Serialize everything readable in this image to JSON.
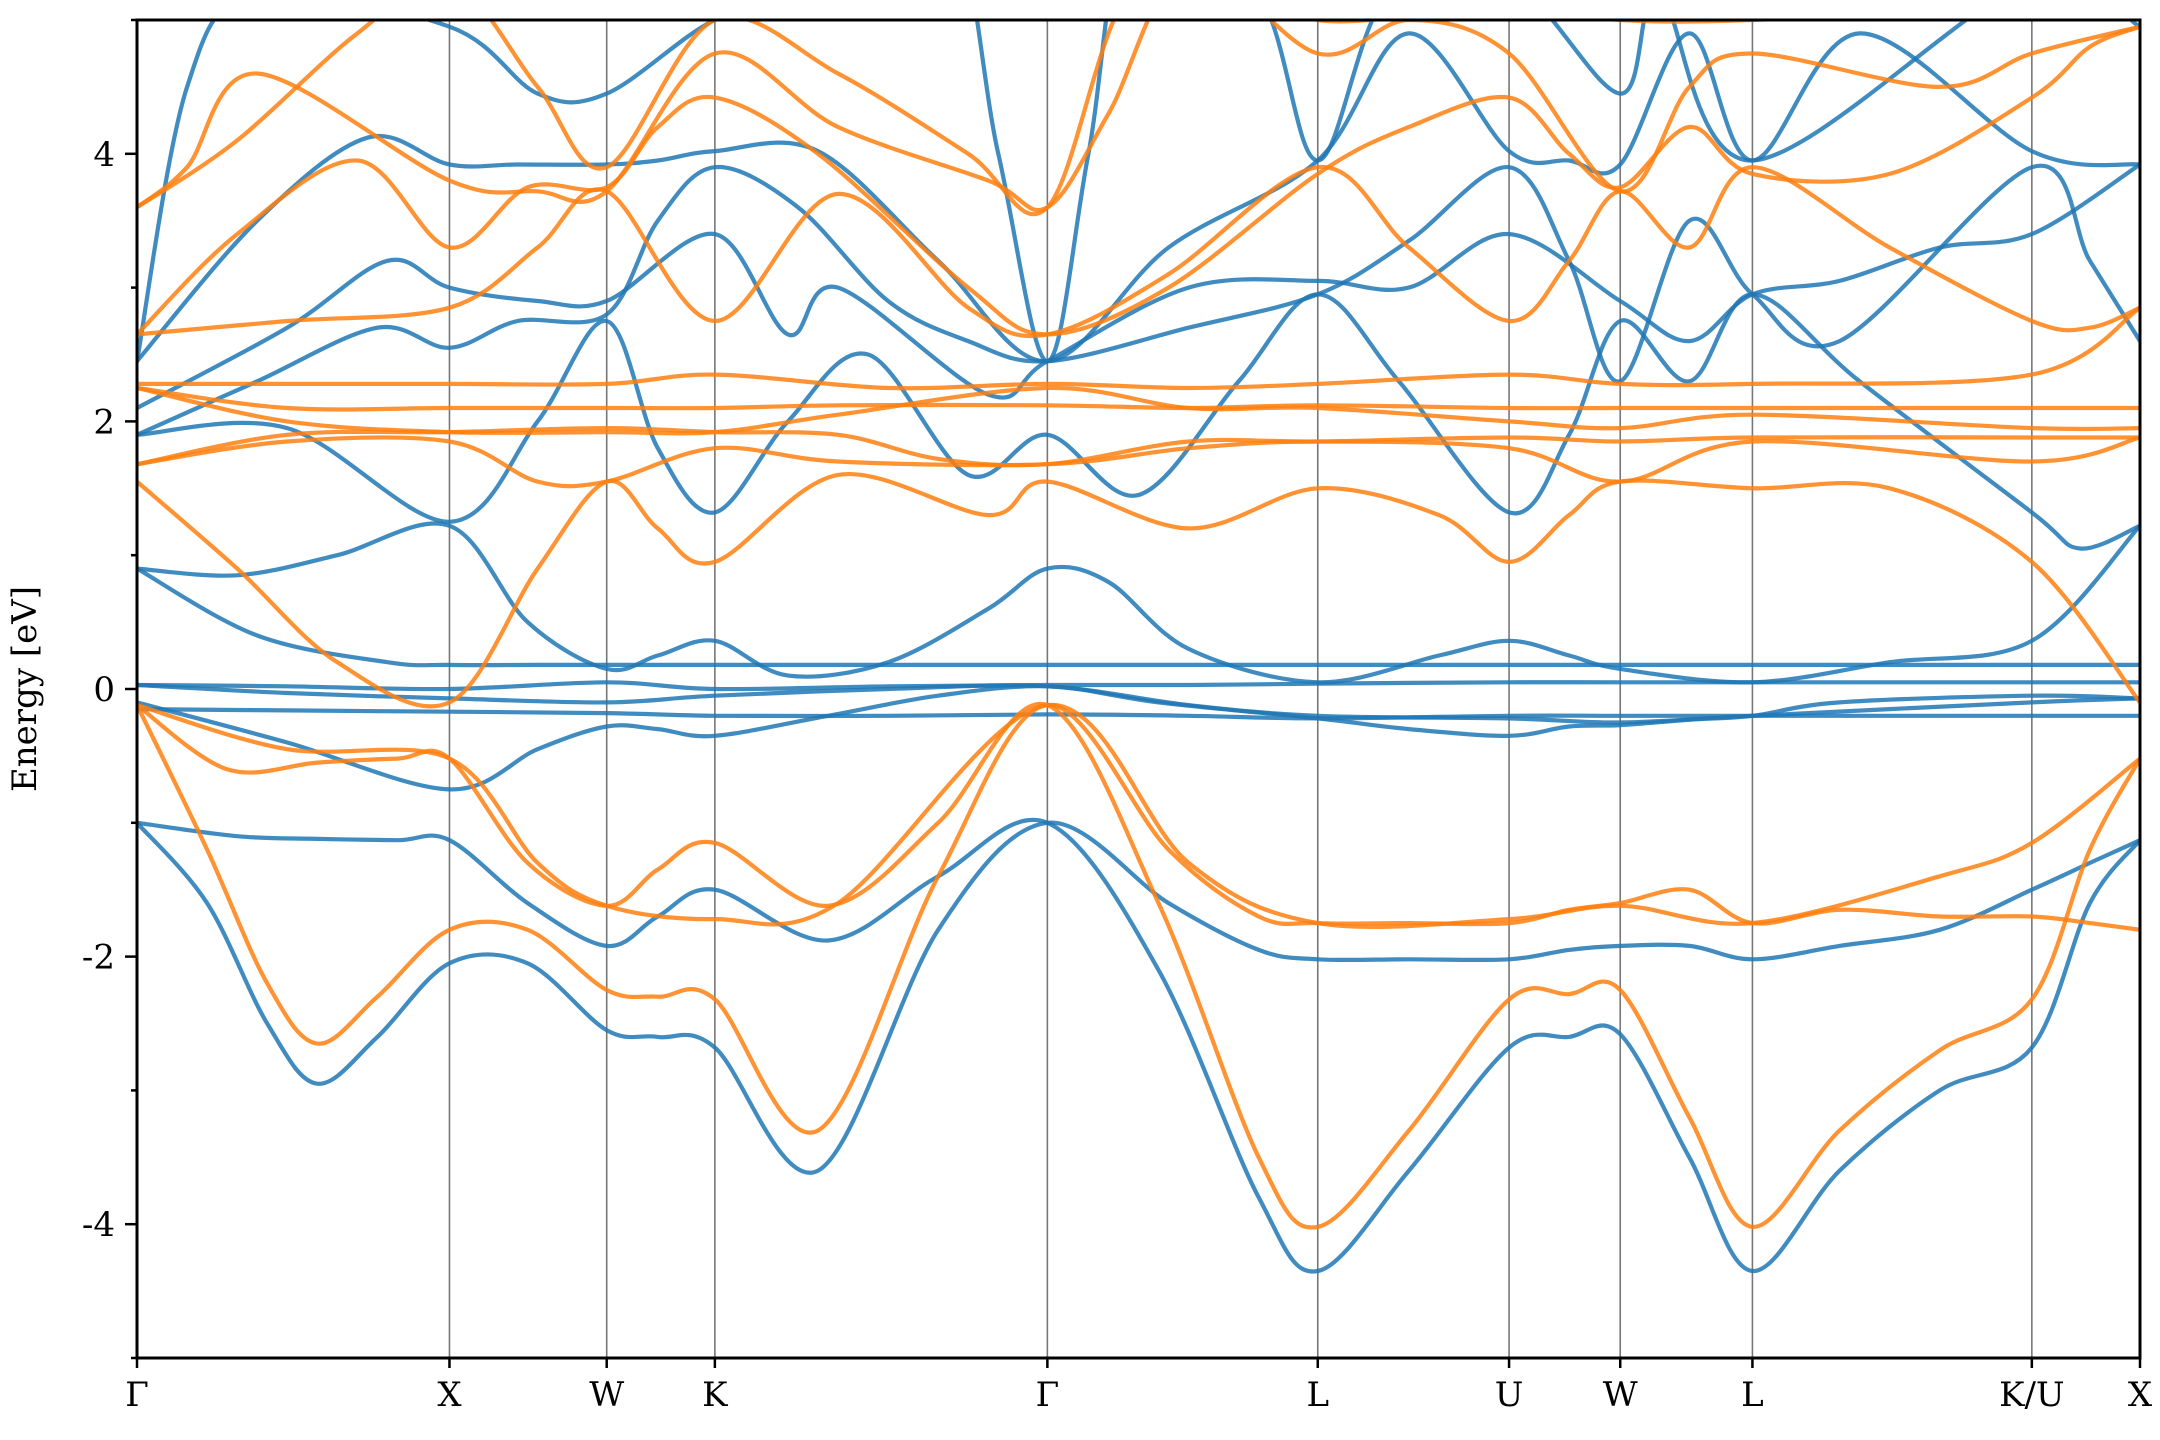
{
  "chart_data": {
    "type": "line",
    "xlabel": "",
    "ylabel": "Energy [eV]",
    "ylim": [
      -5,
      5
    ],
    "xlim": [
      0,
      20
    ],
    "yticks": [
      -4,
      -2,
      0,
      2,
      4
    ],
    "yminor_ticks": [
      -5,
      -3,
      -1,
      1,
      3,
      5
    ],
    "kpoints": [
      {
        "label": "Γ",
        "x": 0
      },
      {
        "label": "X",
        "x": 3.12
      },
      {
        "label": "W",
        "x": 4.69
      },
      {
        "label": "K",
        "x": 5.77
      },
      {
        "label": "Γ",
        "x": 9.09
      },
      {
        "label": "L",
        "x": 11.79
      },
      {
        "label": "U",
        "x": 13.7
      },
      {
        "label": "W",
        "x": 14.81
      },
      {
        "label": "L",
        "x": 16.13
      },
      {
        "label": "K/U",
        "x": 18.92
      },
      {
        "label": "X",
        "x": 20.0
      }
    ],
    "colors": {
      "spin_a": "#1f77b4",
      "spin_b": "#ff7f0e"
    },
    "series": [
      {
        "color": "spin_a",
        "x": [
          0,
          1,
          1.8,
          2.6,
          3.12,
          3.9,
          4.69,
          5.2,
          5.77,
          6.9,
          8.0,
          9.09,
          10.2,
          11.2,
          11.79,
          12.7,
          13.7,
          14.3,
          14.81,
          15.5,
          16.13,
          17.0,
          18.0,
          18.92,
          19.5,
          20.0
        ],
        "y": [
          -1.0,
          -1.1,
          -1.12,
          -1.13,
          -1.13,
          -1.6,
          -1.92,
          -1.7,
          -1.5,
          -1.88,
          -1.4,
          -1.0,
          -2.1,
          -3.8,
          -4.35,
          -3.6,
          -2.68,
          -2.6,
          -2.58,
          -3.5,
          -4.35,
          -3.6,
          -3.0,
          -2.68,
          -1.6,
          -1.13
        ]
      },
      {
        "color": "spin_a",
        "x": [
          0,
          0.7,
          1.3,
          1.8,
          2.4,
          3.12,
          3.9,
          4.69,
          5.2,
          5.77,
          6.8,
          8.0,
          9.09,
          10.3,
          11.2,
          11.79,
          12.7,
          13.7,
          14.3,
          14.81,
          15.5,
          16.13,
          17.0,
          18.0,
          18.92,
          19.5,
          20.0
        ],
        "y": [
          -1.0,
          -1.6,
          -2.5,
          -2.95,
          -2.6,
          -2.05,
          -2.05,
          -2.55,
          -2.6,
          -2.68,
          -3.6,
          -1.8,
          -1.0,
          -1.6,
          -1.95,
          -2.02,
          -2.02,
          -2.02,
          -1.95,
          -1.92,
          -1.92,
          -2.02,
          -1.92,
          -1.8,
          -1.5,
          -1.3,
          -1.13
        ]
      },
      {
        "color": "spin_a",
        "x": [
          0,
          1.5,
          3.12,
          4.0,
          4.69,
          5.2,
          5.77,
          6.9,
          8.0,
          9.09,
          10.2,
          11.79,
          12.7,
          13.7,
          14.3,
          14.81,
          15.5,
          16.13,
          17.0,
          18.92,
          20.0
        ],
        "y": [
          -0.1,
          -0.4,
          -0.75,
          -0.45,
          -0.28,
          -0.3,
          -0.35,
          -0.2,
          -0.05,
          0.02,
          -0.1,
          -0.22,
          -0.3,
          -0.35,
          -0.28,
          -0.27,
          -0.23,
          -0.2,
          -0.1,
          -0.05,
          -0.07
        ]
      },
      {
        "color": "spin_a",
        "x": [
          0,
          1.5,
          3.12,
          4.69,
          5.77,
          7.5,
          9.09,
          10.5,
          11.79,
          13.7,
          14.81,
          16.13,
          18.92,
          20.0
        ],
        "y": [
          0.03,
          -0.03,
          -0.07,
          -0.1,
          -0.05,
          0.0,
          0.02,
          -0.12,
          -0.2,
          -0.22,
          -0.25,
          -0.2,
          -0.1,
          -0.07
        ]
      },
      {
        "color": "spin_a",
        "x": [
          0,
          1.5,
          3.12,
          4.69,
          5.77,
          7.5,
          9.09,
          10.5,
          11.79,
          13.7,
          14.81,
          16.13,
          18.92,
          20.0
        ],
        "y": [
          -0.15,
          -0.16,
          -0.17,
          -0.18,
          -0.2,
          -0.2,
          -0.19,
          -0.2,
          -0.22,
          -0.2,
          -0.2,
          -0.2,
          -0.2,
          -0.2
        ]
      },
      {
        "color": "spin_a",
        "x": [
          0,
          1.5,
          3.12,
          4.69,
          5.77,
          7.5,
          9.09,
          10.5,
          11.79,
          13.7,
          14.81,
          16.13,
          18.92,
          20.0
        ],
        "y": [
          0.03,
          0.02,
          0.0,
          0.05,
          0.0,
          0.02,
          0.03,
          0.03,
          0.04,
          0.05,
          0.05,
          0.05,
          0.05,
          0.05
        ]
      },
      {
        "color": "spin_a",
        "x": [
          0,
          1.2,
          2.5,
          3.12,
          4.0,
          4.69,
          5.77,
          7.0,
          9.09,
          11.79,
          13.7,
          14.81,
          16.13,
          18.92,
          20.0
        ],
        "y": [
          0.9,
          0.4,
          0.2,
          0.18,
          0.18,
          0.18,
          0.18,
          0.18,
          0.18,
          0.18,
          0.18,
          0.18,
          0.18,
          0.18,
          0.18
        ]
      },
      {
        "color": "spin_a",
        "x": [
          0,
          1.0,
          2.0,
          3.12,
          3.9,
          4.69,
          5.2,
          5.77,
          6.5,
          7.5,
          8.5,
          9.09,
          9.7,
          10.5,
          11.79,
          13.0,
          13.7,
          14.3,
          14.81,
          16.13,
          17.5,
          18.92,
          20.0
        ],
        "y": [
          0.9,
          0.85,
          1.0,
          1.22,
          0.5,
          0.15,
          0.25,
          0.36,
          0.1,
          0.2,
          0.6,
          0.9,
          0.8,
          0.3,
          0.05,
          0.25,
          0.36,
          0.25,
          0.15,
          0.05,
          0.2,
          0.36,
          1.22
        ]
      },
      {
        "color": "spin_a",
        "x": [
          0,
          1.5,
          3.12,
          4.0,
          4.69,
          5.2,
          5.77,
          6.5,
          7.3,
          8.3,
          9.09,
          10.0,
          11.0,
          11.79,
          12.6,
          13.7,
          14.3,
          14.81,
          15.5,
          16.13,
          17.2,
          18.92,
          19.4,
          20.0
        ],
        "y": [
          1.9,
          1.95,
          1.25,
          2.0,
          2.75,
          1.8,
          1.32,
          2.0,
          2.5,
          1.6,
          1.9,
          1.45,
          2.3,
          2.95,
          2.3,
          1.32,
          1.9,
          2.75,
          2.3,
          2.95,
          2.3,
          1.32,
          1.05,
          1.22
        ]
      },
      {
        "color": "spin_a",
        "x": [
          0,
          1.5,
          2.5,
          3.12,
          4.0,
          4.69,
          5.77,
          6.5,
          7.0,
          8.5,
          9.09,
          10.5,
          11.79,
          12.7,
          13.7,
          14.81,
          15.5,
          16.13,
          17.0,
          18.0,
          18.92,
          20.0
        ],
        "y": [
          2.1,
          2.7,
          3.2,
          3.0,
          2.9,
          2.9,
          3.4,
          2.65,
          3.0,
          2.2,
          2.45,
          3.0,
          3.05,
          3.0,
          3.4,
          2.9,
          2.6,
          2.95,
          3.05,
          3.3,
          3.4,
          3.92
        ]
      },
      {
        "color": "spin_a",
        "x": [
          0,
          1.2,
          2.3,
          3.12,
          3.8,
          4.69,
          5.2,
          5.77,
          6.8,
          8.0,
          9.09,
          10.3,
          11.79,
          12.7,
          13.7,
          14.3,
          14.81,
          15.5,
          16.13,
          17.2,
          18.92,
          20.0
        ],
        "y": [
          2.45,
          3.5,
          4.12,
          3.92,
          3.92,
          3.92,
          3.95,
          4.02,
          4.02,
          3.2,
          2.45,
          3.3,
          3.95,
          4.9,
          4.02,
          3.95,
          3.92,
          4.9,
          3.95,
          4.9,
          4.02,
          3.92
        ]
      },
      {
        "color": "spin_a",
        "x": [
          0,
          1.2,
          2.4,
          3.12,
          3.8,
          4.69,
          5.2,
          5.77,
          6.6,
          7.5,
          8.3,
          9.09,
          10.5,
          11.79,
          12.7,
          13.7,
          14.3,
          14.81,
          15.5,
          16.13,
          17.0,
          18.92,
          19.5,
          20.0
        ],
        "y": [
          1.9,
          2.3,
          2.7,
          2.55,
          2.75,
          2.8,
          3.5,
          3.9,
          3.6,
          2.9,
          2.6,
          2.45,
          2.7,
          2.95,
          3.35,
          3.9,
          3.2,
          2.3,
          3.5,
          2.95,
          2.6,
          3.9,
          3.2,
          2.6
        ]
      },
      {
        "color": "spin_a",
        "x": [
          0,
          0.5,
          1.2,
          3.12,
          4.0,
          4.69,
          5.77,
          6.6,
          8.0,
          8.6,
          9.09,
          9.5,
          10.0,
          11.2,
          11.79,
          12.5,
          13.7,
          14.81,
          15.2,
          16.13,
          18.92,
          20.0
        ],
        "y": [
          2.45,
          4.5,
          5.2,
          4.95,
          4.45,
          4.45,
          5.0,
          5.1,
          6.0,
          4.0,
          2.45,
          4.0,
          6.0,
          5.2,
          3.95,
          5.2,
          5.3,
          4.45,
          5.2,
          3.95,
          5.3,
          4.95
        ]
      },
      {
        "color": "spin_b",
        "x": [
          0,
          0.9,
          1.8,
          2.6,
          3.12,
          3.9,
          4.69,
          5.2,
          5.77,
          6.9,
          8.0,
          9.09,
          10.2,
          11.2,
          11.79,
          12.7,
          13.7,
          14.3,
          14.81,
          15.5,
          16.13,
          17.0,
          18.0,
          18.92,
          19.5,
          20.0
        ],
        "y": [
          -0.12,
          -0.6,
          -0.55,
          -0.52,
          -0.52,
          -1.3,
          -1.62,
          -1.35,
          -1.15,
          -1.62,
          -1.0,
          -0.12,
          -1.6,
          -3.5,
          -4.02,
          -3.3,
          -2.32,
          -2.28,
          -2.25,
          -3.2,
          -4.02,
          -3.3,
          -2.7,
          -2.32,
          -1.2,
          -0.52
        ]
      },
      {
        "color": "spin_b",
        "x": [
          0,
          0.7,
          1.3,
          1.8,
          2.4,
          3.12,
          3.9,
          4.69,
          5.2,
          5.77,
          6.8,
          8.0,
          9.09,
          10.3,
          11.2,
          11.79,
          12.7,
          13.7,
          14.3,
          14.81,
          15.5,
          16.13,
          17.0,
          18.0,
          18.92,
          19.5,
          20.0
        ],
        "y": [
          -0.12,
          -1.2,
          -2.2,
          -2.65,
          -2.3,
          -1.8,
          -1.8,
          -2.25,
          -2.3,
          -2.32,
          -3.3,
          -1.4,
          -0.12,
          -1.2,
          -1.7,
          -1.75,
          -1.75,
          -1.75,
          -1.65,
          -1.6,
          -1.5,
          -1.75,
          -1.65,
          -1.7,
          -1.7,
          -1.75,
          -1.8
        ]
      },
      {
        "color": "spin_b",
        "x": [
          0,
          1.5,
          3.12,
          4.0,
          4.69,
          5.77,
          7.0,
          9.09,
          10.5,
          11.79,
          13.7,
          14.81,
          16.13,
          18.0,
          18.92,
          20.0
        ],
        "y": [
          -0.12,
          -0.45,
          -0.52,
          -1.3,
          -1.62,
          -1.72,
          -1.6,
          -0.12,
          -1.3,
          -1.75,
          -1.72,
          -1.62,
          -1.75,
          -1.4,
          -1.15,
          -0.52
        ]
      },
      {
        "color": "spin_b",
        "x": [
          0,
          1.0,
          2.0,
          3.12,
          4.0,
          4.69,
          5.2,
          5.77,
          7.0,
          8.5,
          9.09,
          10.5,
          11.79,
          13.0,
          13.7,
          14.3,
          14.81,
          16.13,
          17.5,
          18.92,
          20.0
        ],
        "y": [
          1.55,
          0.9,
          0.2,
          -0.1,
          0.9,
          1.55,
          1.2,
          0.95,
          1.6,
          1.3,
          1.55,
          1.2,
          1.5,
          1.3,
          0.95,
          1.3,
          1.55,
          1.5,
          1.5,
          0.95,
          -0.1
        ]
      },
      {
        "color": "spin_b",
        "x": [
          0,
          1.5,
          3.12,
          4.0,
          4.69,
          5.77,
          7.0,
          9.09,
          10.5,
          11.79,
          13.7,
          14.81,
          16.13,
          18.92,
          20.0
        ],
        "y": [
          1.68,
          1.85,
          1.85,
          1.55,
          1.55,
          1.8,
          1.7,
          1.68,
          1.8,
          1.85,
          1.8,
          1.55,
          1.85,
          1.7,
          1.88
        ]
      },
      {
        "color": "spin_b",
        "x": [
          0,
          1.5,
          3.12,
          4.69,
          5.77,
          7.0,
          8.0,
          9.09,
          10.5,
          11.79,
          13.7,
          14.81,
          16.13,
          18.92,
          20.0
        ],
        "y": [
          1.68,
          1.9,
          1.92,
          1.95,
          1.92,
          1.9,
          1.72,
          1.68,
          1.85,
          1.85,
          1.88,
          1.85,
          1.88,
          1.88,
          1.88
        ]
      },
      {
        "color": "spin_b",
        "x": [
          0,
          1.5,
          3.12,
          4.69,
          5.77,
          7.0,
          9.09,
          10.5,
          11.79,
          13.7,
          14.81,
          16.13,
          18.92,
          20.0
        ],
        "y": [
          2.25,
          2.0,
          1.92,
          1.92,
          1.92,
          2.05,
          2.25,
          2.1,
          2.1,
          2.0,
          1.95,
          2.05,
          1.95,
          1.95
        ]
      },
      {
        "color": "spin_b",
        "x": [
          0,
          1.5,
          3.12,
          4.69,
          5.77,
          7.0,
          9.09,
          10.5,
          11.79,
          13.7,
          14.81,
          16.13,
          18.92,
          20.0
        ],
        "y": [
          2.25,
          2.1,
          2.1,
          2.1,
          2.1,
          2.12,
          2.12,
          2.1,
          2.12,
          2.1,
          2.1,
          2.1,
          2.1,
          2.1
        ]
      },
      {
        "color": "spin_b",
        "x": [
          0,
          1.5,
          3.12,
          4.69,
          5.77,
          7.5,
          9.09,
          10.5,
          11.79,
          13.7,
          14.81,
          16.13,
          18.92,
          20.0
        ],
        "y": [
          2.28,
          2.28,
          2.28,
          2.28,
          2.35,
          2.25,
          2.28,
          2.25,
          2.28,
          2.35,
          2.28,
          2.28,
          2.35,
          2.85
        ]
      },
      {
        "color": "spin_b",
        "x": [
          0,
          1.5,
          3.12,
          4.0,
          4.69,
          5.77,
          7.0,
          8.3,
          9.09,
          10.3,
          11.79,
          12.7,
          13.7,
          14.3,
          14.81,
          15.5,
          16.13,
          17.5,
          18.92,
          19.5,
          20.0
        ],
        "y": [
          2.65,
          2.75,
          2.85,
          3.3,
          3.72,
          2.75,
          3.7,
          2.85,
          2.65,
          3.1,
          3.9,
          3.3,
          2.75,
          3.2,
          3.72,
          3.3,
          3.9,
          3.3,
          2.75,
          2.7,
          2.85
        ]
      },
      {
        "color": "spin_b",
        "x": [
          0,
          1.0,
          2.2,
          3.12,
          3.9,
          4.69,
          5.2,
          5.77,
          6.8,
          8.3,
          9.09,
          10.3,
          11.79,
          12.7,
          13.7,
          14.3,
          14.81,
          15.5,
          16.13,
          17.5,
          18.92,
          19.5,
          20.0
        ],
        "y": [
          2.65,
          3.4,
          3.95,
          3.3,
          3.75,
          3.75,
          4.2,
          4.42,
          4.0,
          3.0,
          2.65,
          3.0,
          3.85,
          4.2,
          4.42,
          4.0,
          3.75,
          4.2,
          3.85,
          3.85,
          4.42,
          4.8,
          4.95
        ]
      },
      {
        "color": "spin_b",
        "x": [
          0,
          0.5,
          1.2,
          3.12,
          4.0,
          4.69,
          5.77,
          7.0,
          8.5,
          9.09,
          9.7,
          10.5,
          11.79,
          12.7,
          13.7,
          14.81,
          15.5,
          16.13,
          18.0,
          18.92,
          20.0
        ],
        "y": [
          3.6,
          3.9,
          4.6,
          3.8,
          3.72,
          3.72,
          4.75,
          4.2,
          3.8,
          3.6,
          4.3,
          5.4,
          4.75,
          5.0,
          4.75,
          3.72,
          4.5,
          4.75,
          4.5,
          4.75,
          4.95
        ]
      },
      {
        "color": "spin_b",
        "x": [
          0,
          1.0,
          2.2,
          3.12,
          4.0,
          4.69,
          5.77,
          7.0,
          8.3,
          9.09,
          9.9,
          11.0,
          11.79,
          13.7,
          14.81,
          16.13,
          18.92,
          20.0
        ],
        "y": [
          3.6,
          4.1,
          4.9,
          5.3,
          4.5,
          3.9,
          5.0,
          4.6,
          4.0,
          3.6,
          5.2,
          5.4,
          5.0,
          5.1,
          5.0,
          5.0,
          5.1,
          5.0
        ]
      }
    ]
  }
}
